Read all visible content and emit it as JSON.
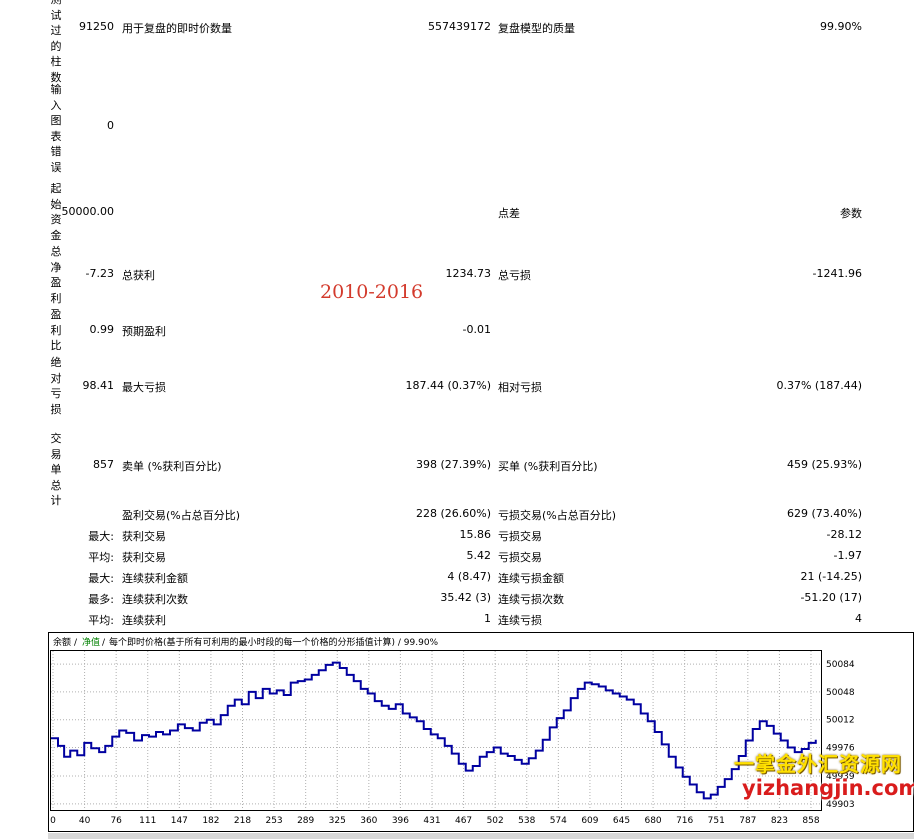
{
  "vertical_labels": {
    "bars_tested": "测试过的柱数",
    "mismatched_chart_errors": "输入图表错误",
    "initial_deposit": "起始资金",
    "total_net_profit": "总净盈利",
    "profit_factor": "盈利比",
    "absolute_drawdown": "绝对亏损",
    "total_trades": "交易单总计"
  },
  "rows": {
    "bars_tested": {
      "value": "91250",
      "label1": "用于复盘的即时价数量",
      "value1": "557439172",
      "label2": "复盘模型的质量",
      "value2": "99.90%"
    },
    "mismatched": {
      "value": "0"
    },
    "initial": {
      "value": "50000.00",
      "label2": "点差",
      "value2": "参数"
    },
    "net_profit": {
      "value": "-7.23",
      "label1": "总获利",
      "value1": "1234.73",
      "label2": "总亏损",
      "value2": "-1241.96"
    },
    "profit_factor": {
      "value": "0.99",
      "label1": "预期盈利",
      "value1": "-0.01"
    },
    "drawdown": {
      "value": "98.41",
      "label1": "最大亏损",
      "value1": "187.44 (0.37%)",
      "label2": "相对亏损",
      "value2": "0.37% (187.44)"
    },
    "total_trades": {
      "value": "857",
      "label1": "卖单 (%获利百分比)",
      "value1": "398 (27.39%)",
      "label2": "买单 (%获利百分比)",
      "value2": "459 (25.93%)"
    },
    "profit_trades": {
      "label1": "盈利交易(%占总百分比)",
      "value1": "228 (26.60%)",
      "label2": "亏损交易(%占总百分比)",
      "value2": "629 (73.40%)"
    },
    "largest": {
      "prefix": "最大:",
      "label1": "获利交易",
      "value1": "15.86",
      "label2": "亏损交易",
      "value2": "-28.12"
    },
    "average": {
      "prefix": "平均:",
      "label1": "获利交易",
      "value1": "5.42",
      "label2": "亏损交易",
      "value2": "-1.97"
    },
    "max_consecutive": {
      "prefix": "最大:",
      "label1": "连续获利金额",
      "value1": "4 (8.47)",
      "label2": "连续亏损金额",
      "value2": "21 (-14.25)"
    },
    "maximal_consecutive": {
      "prefix": "最多:",
      "label1": "连续获利次数",
      "value1": "35.42 (3)",
      "label2": "连续亏损次数",
      "value2": "-51.20 (17)"
    },
    "avg_consecutive": {
      "prefix": "平均:",
      "label1": "连续获利",
      "value1": "1",
      "label2": "连续亏损",
      "value2": "4"
    }
  },
  "watermark_text": "2010-2016",
  "chart_header": {
    "balance": "余额",
    "sep1": "/",
    "equity": "净值",
    "sep2": "/",
    "description": "每个即时价格(基于所有可利用的最小时段的每一个价格的分形插值计算) / 99.90%"
  },
  "branding": {
    "line1": "一掌金外汇资源网",
    "line2": "yizhangjin.com"
  },
  "chart_data": {
    "type": "line",
    "x_ticks": [
      "0",
      "40",
      "76",
      "111",
      "147",
      "182",
      "218",
      "253",
      "289",
      "325",
      "360",
      "396",
      "431",
      "467",
      "502",
      "538",
      "574",
      "609",
      "645",
      "680",
      "716",
      "751",
      "787",
      "823",
      "858"
    ],
    "y_ticks": [
      "50084",
      "50048",
      "50012",
      "49976",
      "49939",
      "49903"
    ],
    "xlim": [
      0,
      880
    ],
    "ylim": [
      49895,
      50101
    ],
    "series": [
      {
        "color": "#0000a0",
        "x": [
          0,
          8,
          15,
          22,
          30,
          38,
          46,
          55,
          62,
          70,
          78,
          86,
          95,
          104,
          112,
          120,
          128,
          136,
          145,
          153,
          162,
          170,
          178,
          186,
          194,
          202,
          210,
          218,
          226,
          234,
          242,
          250,
          258,
          266,
          274,
          282,
          290,
          298,
          306,
          314,
          322,
          330,
          338,
          346,
          354,
          362,
          370,
          378,
          386,
          394,
          402,
          410,
          418,
          426,
          434,
          442,
          450,
          458,
          466,
          474,
          482,
          490,
          498,
          506,
          514,
          522,
          530,
          538,
          546,
          554,
          562,
          570,
          578,
          586,
          594,
          602,
          610,
          618,
          626,
          634,
          642,
          650,
          658,
          666,
          674,
          682,
          690,
          698,
          706,
          714,
          722,
          730,
          738,
          746,
          754,
          762,
          770,
          778,
          786,
          794,
          802,
          810,
          818,
          826,
          834,
          842,
          850,
          858,
          866,
          874
        ],
        "y": [
          49988,
          49978,
          49964,
          49972,
          49966,
          49982,
          49975,
          49970,
          49978,
          49990,
          49998,
          49995,
          49985,
          49992,
          49990,
          49996,
          49993,
          49998,
          50006,
          50001,
          49998,
          50008,
          50012,
          50006,
          50018,
          50030,
          50038,
          50032,
          50048,
          50040,
          50052,
          50046,
          50050,
          50044,
          50060,
          50062,
          50064,
          50070,
          50076,
          50083,
          50086,
          50079,
          50070,
          50062,
          50052,
          50046,
          50036,
          50030,
          50026,
          50032,
          50020,
          50015,
          50010,
          50000,
          49993,
          49988,
          49978,
          49968,
          49955,
          49946,
          49952,
          49964,
          49970,
          49976,
          49968,
          49965,
          49960,
          49955,
          49962,
          49972,
          49986,
          50002,
          50014,
          50024,
          50040,
          50052,
          50060,
          50058,
          50055,
          50050,
          50046,
          50042,
          50038,
          50032,
          50020,
          50010,
          49996,
          49980,
          49964,
          49950,
          49938,
          49928,
          49918,
          49910,
          49915,
          49925,
          49935,
          49948,
          49965,
          49985,
          50000,
          50010,
          50004,
          49994,
          49985,
          49976,
          49970,
          49974,
          49982,
          49986
        ]
      }
    ]
  }
}
